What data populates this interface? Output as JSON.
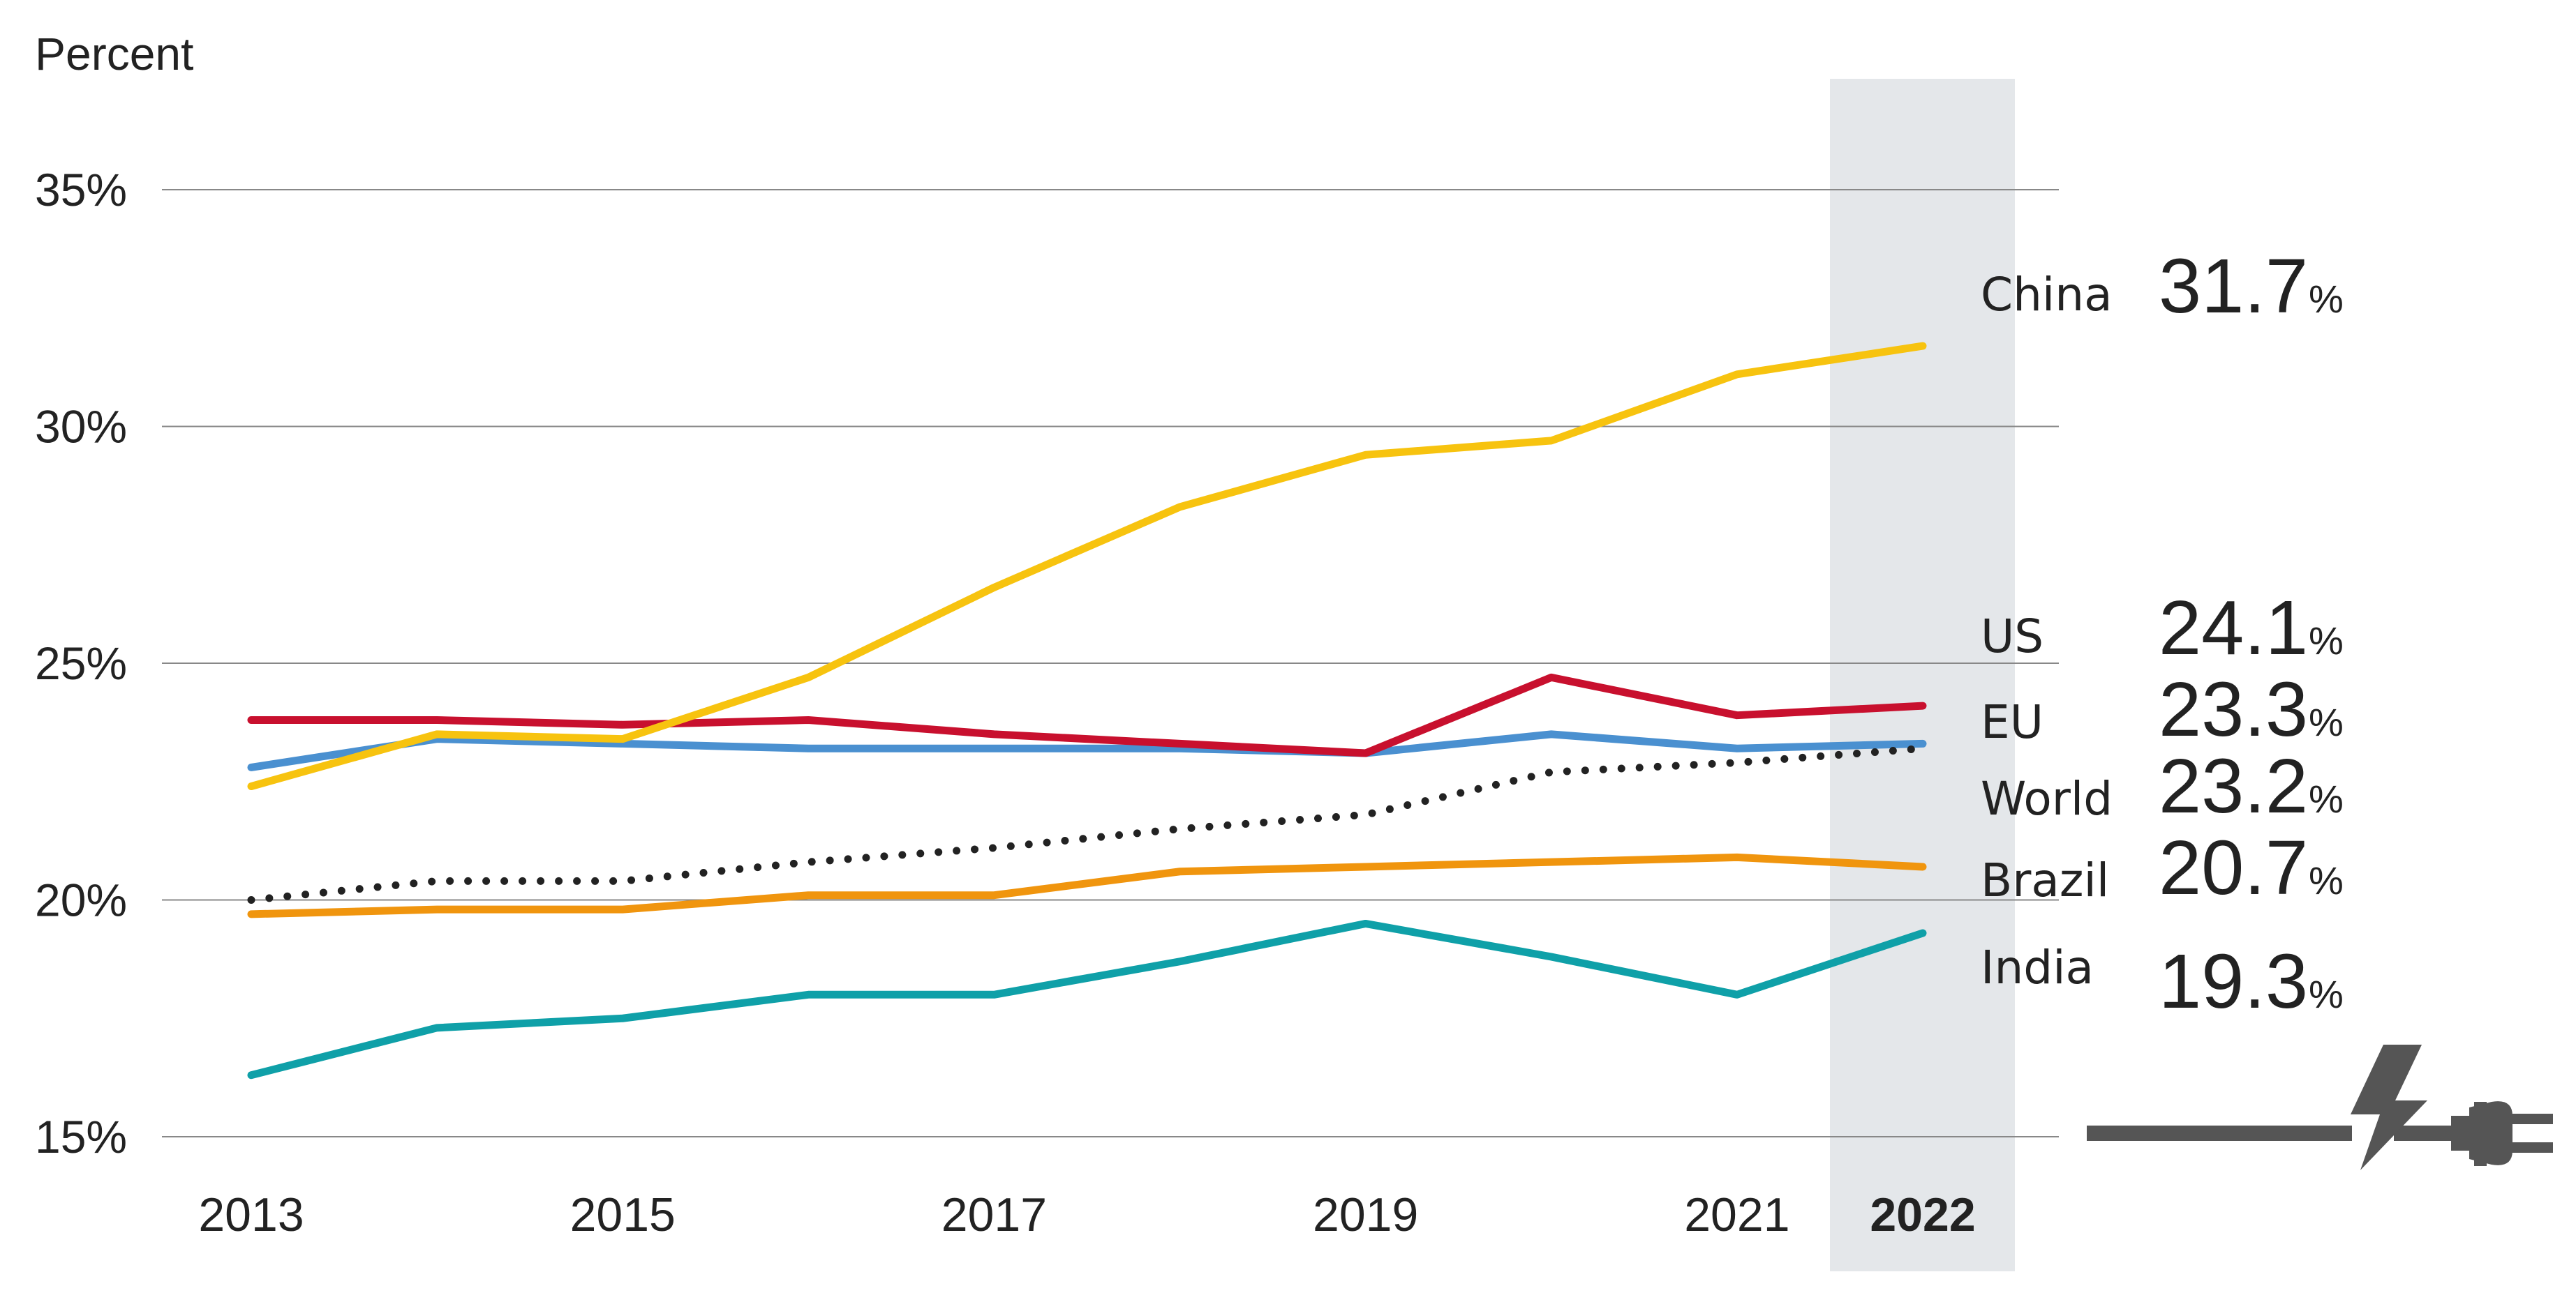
{
  "chart_data": {
    "type": "line",
    "ylabel": "Percent",
    "ylim": [
      15,
      35
    ],
    "yticks": [
      "15%",
      "20%",
      "25%",
      "30%",
      "35%"
    ],
    "ytick_values": [
      15,
      20,
      25,
      30,
      35
    ],
    "x": [
      2013,
      2014,
      2015,
      2016,
      2017,
      2018,
      2019,
      2020,
      2021,
      2022
    ],
    "xtick_labels": [
      "2013",
      "2015",
      "2017",
      "2019",
      "2021",
      "2022"
    ],
    "xtick_values": [
      2013,
      2015,
      2017,
      2019,
      2021,
      2022
    ],
    "highlight_year": 2022,
    "series": [
      {
        "name": "China",
        "color": "#f7c30f",
        "style": "solid",
        "label": "31.7",
        "unit": "%",
        "values": [
          22.4,
          23.5,
          23.4,
          24.7,
          26.6,
          28.3,
          29.4,
          29.7,
          31.1,
          31.7
        ]
      },
      {
        "name": "US",
        "color": "#c8102e",
        "style": "solid",
        "label": "24.1",
        "unit": "%",
        "values": [
          23.8,
          23.8,
          23.7,
          23.8,
          23.5,
          23.3,
          23.1,
          24.7,
          23.9,
          24.1
        ]
      },
      {
        "name": "EU",
        "color": "#4a90d0",
        "style": "solid",
        "label": "23.3",
        "unit": "%",
        "values": [
          22.8,
          23.4,
          23.3,
          23.2,
          23.2,
          23.2,
          23.1,
          23.5,
          23.2,
          23.3
        ]
      },
      {
        "name": "World",
        "color": "#222222",
        "style": "dotted",
        "label": "23.2",
        "unit": "%",
        "values": [
          20.0,
          20.4,
          20.4,
          20.8,
          21.1,
          21.5,
          21.8,
          22.7,
          22.9,
          23.2
        ]
      },
      {
        "name": "Brazil",
        "color": "#f0950e",
        "style": "solid",
        "label": "20.7",
        "unit": "%",
        "values": [
          19.7,
          19.8,
          19.8,
          20.1,
          20.1,
          20.6,
          20.7,
          20.8,
          20.9,
          20.7
        ]
      },
      {
        "name": "India",
        "color": "#0fa0a8",
        "style": "solid",
        "label": "19.3",
        "unit": "%",
        "values": [
          16.3,
          17.3,
          17.5,
          18.0,
          18.0,
          18.7,
          19.5,
          18.8,
          18.0,
          19.3
        ]
      }
    ],
    "grid": true,
    "legend": "right-side inline labels",
    "icon": "electric-plug-icon"
  }
}
